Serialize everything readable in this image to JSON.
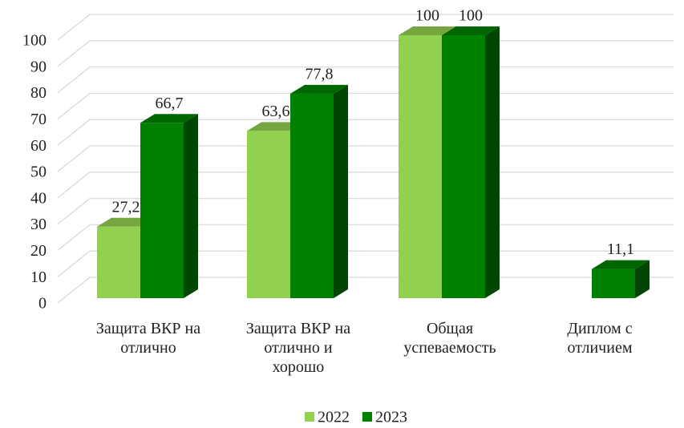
{
  "chart_data": {
    "type": "bar3d",
    "categories": [
      "Защита ВКР на отлично",
      "Защита ВКР на отлично и хорошо",
      "Общая успеваемость",
      "Диплом с отличием"
    ],
    "series": [
      {
        "name": "2022",
        "color": "#92d050",
        "values": [
          27.2,
          63.6,
          100,
          null
        ],
        "value_labels": [
          "27,2",
          "63,6",
          "100",
          null
        ]
      },
      {
        "name": "2023",
        "color": "#008000",
        "values": [
          66.7,
          77.8,
          100,
          11.1
        ],
        "value_labels": [
          "66,7",
          "77,8",
          "100",
          "11,1"
        ]
      }
    ],
    "ylim": [
      0,
      100
    ],
    "yticks": [
      0,
      10,
      20,
      30,
      40,
      50,
      60,
      70,
      80,
      90,
      100
    ],
    "grid": true,
    "legend": "bottom"
  }
}
